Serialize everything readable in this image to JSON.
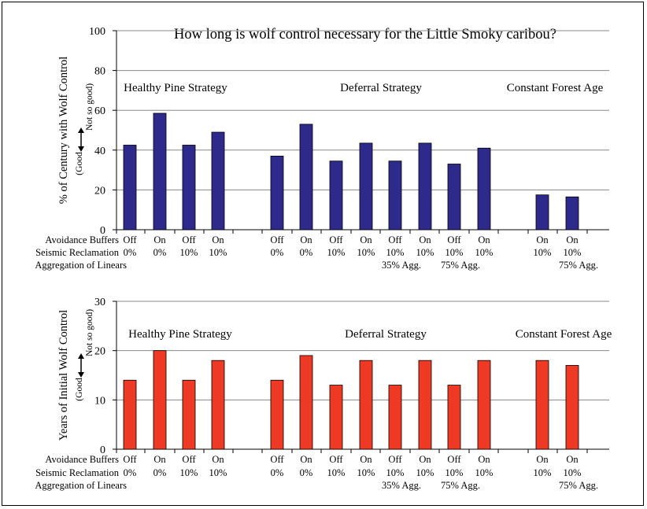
{
  "chart_data": [
    {
      "type": "bar",
      "title": "How long is wolf control necessary for the Little Smoky caribou?",
      "ylabel": "% of Century with Wolf Control",
      "direction_low": "(Good",
      "direction_high": "Not so good)",
      "ylim": [
        0,
        100
      ],
      "yticks": [
        "0",
        "20",
        "40",
        "60",
        "80",
        "100"
      ],
      "grid": true,
      "bar_color": "#2e2a8c",
      "row_labels": [
        "Avoidance Buffers",
        "Seismic Reclamation",
        "Aggregation of Linears"
      ],
      "groups": [
        "Healthy Pine Strategy",
        "Deferral Strategy",
        "Constant Forest Age"
      ],
      "bars": [
        {
          "group": 0,
          "buffers": "Off",
          "seismic": "0%",
          "agg": "",
          "value": 42.5
        },
        {
          "group": 0,
          "buffers": "On",
          "seismic": "0%",
          "agg": "",
          "value": 58.5
        },
        {
          "group": 0,
          "buffers": "Off",
          "seismic": "10%",
          "agg": "",
          "value": 42.5
        },
        {
          "group": 0,
          "buffers": "On",
          "seismic": "10%",
          "agg": "",
          "value": 49
        },
        {
          "group": 1,
          "buffers": "Off",
          "seismic": "0%",
          "agg": "",
          "value": 37
        },
        {
          "group": 1,
          "buffers": "On",
          "seismic": "0%",
          "agg": "",
          "value": 53
        },
        {
          "group": 1,
          "buffers": "Off",
          "seismic": "10%",
          "agg": "",
          "value": 34.5
        },
        {
          "group": 1,
          "buffers": "On",
          "seismic": "10%",
          "agg": "",
          "value": 43.5
        },
        {
          "group": 1,
          "buffers": "Off",
          "seismic": "10%",
          "agg": "35% Agg.",
          "value": 34.5
        },
        {
          "group": 1,
          "buffers": "On",
          "seismic": "10%",
          "agg": "",
          "value": 43.5
        },
        {
          "group": 1,
          "buffers": "Off",
          "seismic": "10%",
          "agg": "75% Agg.",
          "value": 33
        },
        {
          "group": 1,
          "buffers": "On",
          "seismic": "10%",
          "agg": "",
          "value": 41
        },
        {
          "group": 2,
          "buffers": "On",
          "seismic": "10%",
          "agg": "",
          "value": 17.5
        },
        {
          "group": 2,
          "buffers": "On",
          "seismic": "10%",
          "agg": "75% Agg.",
          "value": 16.5
        }
      ]
    },
    {
      "type": "bar",
      "title": "",
      "ylabel": "Years of Initial Wolf Control",
      "direction_low": "(Good",
      "direction_high": "Not so good)",
      "ylim": [
        0,
        30
      ],
      "yticks": [
        "0",
        "10",
        "20",
        "30"
      ],
      "grid": true,
      "bar_color": "#ee3a24",
      "row_labels": [
        "Avoidance Buffers",
        "Seismic Reclamation",
        "Aggregation of Linears"
      ],
      "groups": [
        "Healthy Pine Strategy",
        "Deferral Strategy",
        "Constant Forest Age"
      ],
      "bars": [
        {
          "group": 0,
          "buffers": "Off",
          "seismic": "0%",
          "agg": "",
          "value": 14
        },
        {
          "group": 0,
          "buffers": "On",
          "seismic": "0%",
          "agg": "",
          "value": 20
        },
        {
          "group": 0,
          "buffers": "Off",
          "seismic": "10%",
          "agg": "",
          "value": 14
        },
        {
          "group": 0,
          "buffers": "On",
          "seismic": "10%",
          "agg": "",
          "value": 18
        },
        {
          "group": 1,
          "buffers": "Off",
          "seismic": "0%",
          "agg": "",
          "value": 14
        },
        {
          "group": 1,
          "buffers": "On",
          "seismic": "0%",
          "agg": "",
          "value": 19
        },
        {
          "group": 1,
          "buffers": "Off",
          "seismic": "10%",
          "agg": "",
          "value": 13
        },
        {
          "group": 1,
          "buffers": "On",
          "seismic": "10%",
          "agg": "",
          "value": 18
        },
        {
          "group": 1,
          "buffers": "Off",
          "seismic": "10%",
          "agg": "35% Agg.",
          "value": 13
        },
        {
          "group": 1,
          "buffers": "On",
          "seismic": "10%",
          "agg": "",
          "value": 18
        },
        {
          "group": 1,
          "buffers": "Off",
          "seismic": "10%",
          "agg": "75% Agg.",
          "value": 13
        },
        {
          "group": 1,
          "buffers": "On",
          "seismic": "10%",
          "agg": "",
          "value": 18
        },
        {
          "group": 2,
          "buffers": "On",
          "seismic": "10%",
          "agg": "",
          "value": 18
        },
        {
          "group": 2,
          "buffers": "On",
          "seismic": "10%",
          "agg": "75% Agg.",
          "value": 17
        }
      ]
    }
  ]
}
